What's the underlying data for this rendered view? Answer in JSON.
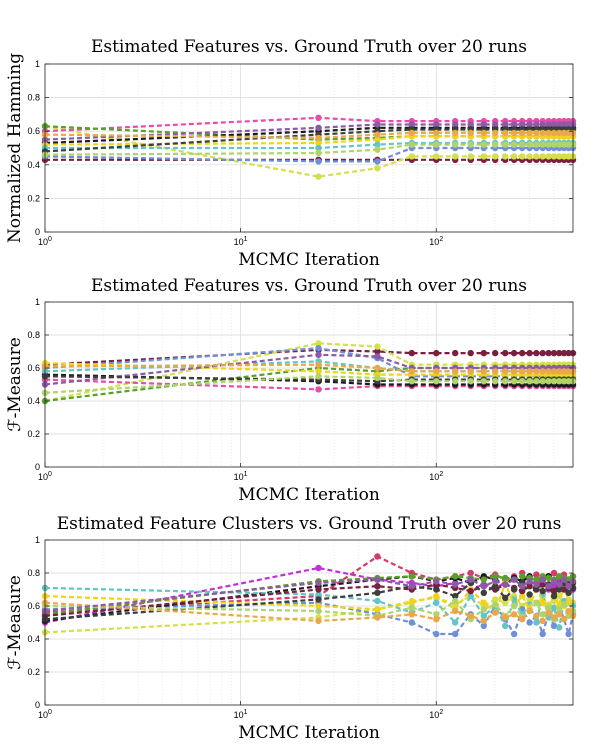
{
  "chart_data": [
    {
      "type": "line",
      "title": "Estimated Features vs. Ground Truth over 20 runs",
      "xlabel": "MCMC Iteration",
      "ylabel": "Normalized Hamming",
      "xscale": "log",
      "xlim": [
        1,
        500
      ],
      "ylim": [
        0,
        1
      ],
      "yticks": [
        "0",
        "0.2",
        "0.4",
        "0.6",
        "0.8",
        "1"
      ],
      "xticks": [
        "10^0",
        "10^1",
        "10^2"
      ],
      "grid": true,
      "x": [
        1,
        25,
        50,
        75,
        100,
        125,
        150,
        175,
        200,
        225,
        250,
        275,
        300,
        325,
        350,
        375,
        400,
        425,
        450,
        475,
        500
      ],
      "series": [
        {
          "color": "#7a1f3d",
          "values": [
            0.43,
            0.43,
            0.43,
            0.43,
            0.43,
            0.43,
            0.43,
            0.43,
            0.43,
            0.43,
            0.43,
            0.43,
            0.43,
            0.43,
            0.43,
            0.43,
            0.43,
            0.43,
            0.43,
            0.43,
            0.43
          ]
        },
        {
          "color": "#d4e04a",
          "values": [
            0.63,
            0.33,
            0.38,
            0.45,
            0.45,
            0.45,
            0.45,
            0.45,
            0.45,
            0.45,
            0.45,
            0.45,
            0.45,
            0.45,
            0.45,
            0.45,
            0.45,
            0.45,
            0.45,
            0.45,
            0.45
          ]
        },
        {
          "color": "#e84ca8",
          "values": [
            0.6,
            0.68,
            0.66,
            0.66,
            0.66,
            0.66,
            0.66,
            0.66,
            0.66,
            0.66,
            0.66,
            0.66,
            0.66,
            0.66,
            0.66,
            0.66,
            0.66,
            0.66,
            0.66,
            0.66,
            0.66
          ]
        },
        {
          "color": "#5aa02c",
          "values": [
            0.63,
            0.55,
            0.56,
            0.57,
            0.57,
            0.57,
            0.57,
            0.57,
            0.57,
            0.57,
            0.57,
            0.57,
            0.57,
            0.57,
            0.57,
            0.57,
            0.57,
            0.57,
            0.57,
            0.57,
            0.57
          ]
        },
        {
          "color": "#6f8fd8",
          "values": [
            0.45,
            0.42,
            0.42,
            0.5,
            0.5,
            0.5,
            0.5,
            0.5,
            0.5,
            0.5,
            0.5,
            0.5,
            0.5,
            0.5,
            0.5,
            0.5,
            0.5,
            0.5,
            0.5,
            0.5,
            0.5
          ]
        },
        {
          "color": "#1a1a1a",
          "values": [
            0.53,
            0.6,
            0.62,
            0.62,
            0.62,
            0.62,
            0.62,
            0.62,
            0.62,
            0.62,
            0.62,
            0.62,
            0.62,
            0.62,
            0.62,
            0.62,
            0.62,
            0.62,
            0.62,
            0.62,
            0.62
          ]
        },
        {
          "color": "#f2d31a",
          "values": [
            0.52,
            0.53,
            0.55,
            0.57,
            0.57,
            0.57,
            0.57,
            0.57,
            0.57,
            0.57,
            0.57,
            0.57,
            0.57,
            0.57,
            0.57,
            0.57,
            0.57,
            0.57,
            0.57,
            0.57,
            0.57
          ]
        },
        {
          "color": "#63c5c8",
          "values": [
            0.5,
            0.5,
            0.52,
            0.53,
            0.53,
            0.53,
            0.53,
            0.53,
            0.53,
            0.53,
            0.53,
            0.53,
            0.53,
            0.53,
            0.53,
            0.53,
            0.53,
            0.53,
            0.53,
            0.53,
            0.53
          ]
        },
        {
          "color": "#8c5ba7",
          "values": [
            0.55,
            0.62,
            0.64,
            0.64,
            0.64,
            0.64,
            0.64,
            0.64,
            0.64,
            0.64,
            0.64,
            0.64,
            0.64,
            0.64,
            0.64,
            0.64,
            0.64,
            0.64,
            0.64,
            0.64,
            0.64
          ]
        },
        {
          "color": "#3d3f3a",
          "values": [
            0.48,
            0.58,
            0.6,
            0.61,
            0.61,
            0.61,
            0.61,
            0.61,
            0.61,
            0.61,
            0.61,
            0.61,
            0.61,
            0.61,
            0.61,
            0.61,
            0.61,
            0.61,
            0.61,
            0.61,
            0.61
          ]
        },
        {
          "color": "#b0d46a",
          "values": [
            0.46,
            0.47,
            0.49,
            0.52,
            0.52,
            0.52,
            0.52,
            0.52,
            0.52,
            0.52,
            0.52,
            0.52,
            0.52,
            0.52,
            0.52,
            0.52,
            0.52,
            0.52,
            0.52,
            0.52,
            0.52
          ]
        },
        {
          "color": "#eaa84a",
          "values": [
            0.58,
            0.56,
            0.58,
            0.59,
            0.59,
            0.59,
            0.59,
            0.59,
            0.59,
            0.59,
            0.59,
            0.59,
            0.59,
            0.59,
            0.59,
            0.59,
            0.59,
            0.59,
            0.59,
            0.59,
            0.59
          ]
        }
      ]
    },
    {
      "type": "line",
      "title": "Estimated Features vs. Ground Truth over 20 runs",
      "xlabel": "MCMC Iteration",
      "ylabel": "ℱ-Measure",
      "xscale": "log",
      "xlim": [
        1,
        500
      ],
      "ylim": [
        0,
        1
      ],
      "yticks": [
        "0",
        "0.2",
        "0.4",
        "0.6",
        "0.8",
        "1"
      ],
      "xticks": [
        "10^0",
        "10^1",
        "10^2"
      ],
      "grid": true,
      "x": [
        1,
        25,
        50,
        75,
        100,
        125,
        150,
        175,
        200,
        225,
        250,
        275,
        300,
        325,
        350,
        375,
        400,
        425,
        450,
        475,
        500
      ],
      "series": [
        {
          "color": "#7a1f3d",
          "values": [
            0.62,
            0.71,
            0.7,
            0.69,
            0.69,
            0.69,
            0.69,
            0.69,
            0.69,
            0.69,
            0.69,
            0.69,
            0.69,
            0.69,
            0.69,
            0.69,
            0.69,
            0.69,
            0.69,
            0.69,
            0.69
          ]
        },
        {
          "color": "#d4e04a",
          "values": [
            0.4,
            0.75,
            0.73,
            0.62,
            0.62,
            0.62,
            0.62,
            0.62,
            0.62,
            0.62,
            0.62,
            0.62,
            0.62,
            0.62,
            0.62,
            0.62,
            0.62,
            0.62,
            0.62,
            0.62,
            0.62
          ]
        },
        {
          "color": "#e84ca8",
          "values": [
            0.53,
            0.47,
            0.49,
            0.49,
            0.49,
            0.49,
            0.49,
            0.49,
            0.49,
            0.49,
            0.49,
            0.49,
            0.49,
            0.49,
            0.49,
            0.49,
            0.49,
            0.49,
            0.49,
            0.49,
            0.49
          ]
        },
        {
          "color": "#5aa02c",
          "values": [
            0.4,
            0.6,
            0.58,
            0.6,
            0.6,
            0.6,
            0.6,
            0.6,
            0.6,
            0.6,
            0.6,
            0.6,
            0.6,
            0.6,
            0.6,
            0.6,
            0.6,
            0.6,
            0.6,
            0.6,
            0.6
          ]
        },
        {
          "color": "#6f8fd8",
          "values": [
            0.6,
            0.72,
            0.66,
            0.55,
            0.55,
            0.55,
            0.55,
            0.55,
            0.55,
            0.55,
            0.55,
            0.55,
            0.55,
            0.55,
            0.55,
            0.55,
            0.55,
            0.55,
            0.55,
            0.55,
            0.55
          ]
        },
        {
          "color": "#1a1a1a",
          "values": [
            0.56,
            0.52,
            0.5,
            0.5,
            0.5,
            0.5,
            0.5,
            0.5,
            0.5,
            0.5,
            0.5,
            0.5,
            0.5,
            0.5,
            0.5,
            0.5,
            0.5,
            0.5,
            0.5,
            0.5,
            0.5
          ]
        },
        {
          "color": "#f2d31a",
          "values": [
            0.63,
            0.58,
            0.56,
            0.56,
            0.56,
            0.56,
            0.56,
            0.56,
            0.56,
            0.56,
            0.56,
            0.56,
            0.56,
            0.56,
            0.56,
            0.56,
            0.56,
            0.56,
            0.56,
            0.56,
            0.56
          ]
        },
        {
          "color": "#63c5c8",
          "values": [
            0.58,
            0.64,
            0.6,
            0.58,
            0.58,
            0.58,
            0.58,
            0.58,
            0.58,
            0.58,
            0.58,
            0.58,
            0.58,
            0.58,
            0.58,
            0.58,
            0.58,
            0.58,
            0.58,
            0.58,
            0.58
          ]
        },
        {
          "color": "#8c5ba7",
          "values": [
            0.5,
            0.68,
            0.67,
            0.6,
            0.6,
            0.6,
            0.6,
            0.6,
            0.6,
            0.6,
            0.6,
            0.6,
            0.6,
            0.6,
            0.6,
            0.6,
            0.6,
            0.6,
            0.6,
            0.6,
            0.6
          ]
        },
        {
          "color": "#3d3f3a",
          "values": [
            0.55,
            0.53,
            0.52,
            0.53,
            0.53,
            0.53,
            0.53,
            0.53,
            0.53,
            0.53,
            0.53,
            0.53,
            0.53,
            0.53,
            0.53,
            0.53,
            0.53,
            0.53,
            0.53,
            0.53,
            0.53
          ]
        },
        {
          "color": "#b0d46a",
          "values": [
            0.45,
            0.55,
            0.54,
            0.52,
            0.52,
            0.52,
            0.52,
            0.52,
            0.52,
            0.52,
            0.52,
            0.52,
            0.52,
            0.52,
            0.52,
            0.52,
            0.52,
            0.52,
            0.52,
            0.52,
            0.52
          ]
        },
        {
          "color": "#eaa84a",
          "values": [
            0.61,
            0.62,
            0.6,
            0.58,
            0.58,
            0.58,
            0.58,
            0.58,
            0.58,
            0.58,
            0.58,
            0.58,
            0.58,
            0.58,
            0.58,
            0.58,
            0.58,
            0.58,
            0.58,
            0.58,
            0.58
          ]
        }
      ]
    },
    {
      "type": "line",
      "title": "Estimated Feature Clusters vs. Ground Truth over 20 runs",
      "xlabel": "MCMC Iteration",
      "ylabel": "ℱ-Measure",
      "xscale": "log",
      "xlim": [
        1,
        500
      ],
      "ylim": [
        0,
        1
      ],
      "yticks": [
        "0",
        "0.2",
        "0.4",
        "0.6",
        "0.8",
        "1"
      ],
      "xticks": [
        "10^0",
        "10^1",
        "10^2"
      ],
      "grid": true,
      "x": [
        1,
        25,
        50,
        75,
        100,
        125,
        150,
        175,
        200,
        225,
        250,
        275,
        300,
        325,
        350,
        375,
        400,
        425,
        450,
        475,
        500
      ],
      "series": [
        {
          "color": "#d63a6a",
          "values": [
            0.56,
            0.66,
            0.9,
            0.8,
            0.76,
            0.78,
            0.8,
            0.77,
            0.79,
            0.76,
            0.78,
            0.8,
            0.77,
            0.79,
            0.76,
            0.78,
            0.8,
            0.77,
            0.79,
            0.76,
            0.78
          ]
        },
        {
          "color": "#c22fd6",
          "values": [
            0.5,
            0.83,
            0.76,
            0.74,
            0.72,
            0.74,
            0.7,
            0.73,
            0.71,
            0.74,
            0.7,
            0.72,
            0.74,
            0.71,
            0.73,
            0.7,
            0.72,
            0.74,
            0.71,
            0.73,
            0.7
          ]
        },
        {
          "color": "#d4e04a",
          "values": [
            0.44,
            0.53,
            0.58,
            0.63,
            0.65,
            0.61,
            0.66,
            0.6,
            0.64,
            0.62,
            0.66,
            0.6,
            0.64,
            0.62,
            0.65,
            0.61,
            0.63,
            0.66,
            0.6,
            0.64,
            0.62
          ]
        },
        {
          "color": "#6f8fd8",
          "values": [
            0.58,
            0.62,
            0.55,
            0.5,
            0.43,
            0.43,
            0.55,
            0.48,
            0.6,
            0.52,
            0.43,
            0.58,
            0.5,
            0.54,
            0.43,
            0.56,
            0.48,
            0.6,
            0.52,
            0.43,
            0.55
          ]
        },
        {
          "color": "#1a1a1a",
          "values": [
            0.51,
            0.72,
            0.76,
            0.78,
            0.75,
            0.77,
            0.74,
            0.78,
            0.76,
            0.73,
            0.77,
            0.75,
            0.78,
            0.74,
            0.76,
            0.78,
            0.75,
            0.73,
            0.77,
            0.76,
            0.74
          ]
        },
        {
          "color": "#63c5c8",
          "values": [
            0.71,
            0.67,
            0.63,
            0.56,
            0.62,
            0.5,
            0.66,
            0.54,
            0.6,
            0.48,
            0.64,
            0.55,
            0.61,
            0.5,
            0.67,
            0.53,
            0.59,
            0.47,
            0.63,
            0.56,
            0.6
          ]
        },
        {
          "color": "#f2d31a",
          "values": [
            0.66,
            0.6,
            0.58,
            0.62,
            0.66,
            0.58,
            0.7,
            0.62,
            0.56,
            0.74,
            0.6,
            0.66,
            0.58,
            0.72,
            0.62,
            0.56,
            0.68,
            0.6,
            0.74,
            0.62,
            0.57
          ]
        },
        {
          "color": "#5aa02c",
          "values": [
            0.55,
            0.75,
            0.77,
            0.78,
            0.76,
            0.78,
            0.77,
            0.76,
            0.78,
            0.77,
            0.76,
            0.78,
            0.77,
            0.76,
            0.78,
            0.77,
            0.76,
            0.78,
            0.77,
            0.76,
            0.78
          ]
        },
        {
          "color": "#7a1f3d",
          "values": [
            0.54,
            0.7,
            0.72,
            0.7,
            0.73,
            0.71,
            0.69,
            0.72,
            0.7,
            0.73,
            0.71,
            0.69,
            0.72,
            0.7,
            0.73,
            0.71,
            0.69,
            0.72,
            0.7,
            0.73,
            0.71
          ]
        },
        {
          "color": "#3d3f3a",
          "values": [
            0.52,
            0.64,
            0.68,
            0.72,
            0.7,
            0.66,
            0.74,
            0.68,
            0.72,
            0.65,
            0.7,
            0.74,
            0.67,
            0.71,
            0.69,
            0.73,
            0.66,
            0.7,
            0.74,
            0.68,
            0.71
          ]
        },
        {
          "color": "#b0d46a",
          "values": [
            0.6,
            0.57,
            0.54,
            0.59,
            0.55,
            0.63,
            0.52,
            0.58,
            0.61,
            0.54,
            0.6,
            0.53,
            0.57,
            0.62,
            0.55,
            0.59,
            0.52,
            0.58,
            0.61,
            0.54,
            0.57
          ]
        },
        {
          "color": "#eaa84a",
          "values": [
            0.62,
            0.51,
            0.53,
            0.55,
            0.52,
            0.57,
            0.54,
            0.51,
            0.56,
            0.53,
            0.55,
            0.52,
            0.57,
            0.54,
            0.51,
            0.56,
            0.53,
            0.55,
            0.52,
            0.57,
            0.54
          ]
        },
        {
          "color": "#8c5ba7",
          "values": [
            0.57,
            0.74,
            0.76,
            0.72,
            0.75,
            0.73,
            0.76,
            0.72,
            0.75,
            0.73,
            0.76,
            0.72,
            0.75,
            0.73,
            0.76,
            0.72,
            0.75,
            0.73,
            0.76,
            0.72,
            0.75
          ]
        }
      ]
    }
  ]
}
